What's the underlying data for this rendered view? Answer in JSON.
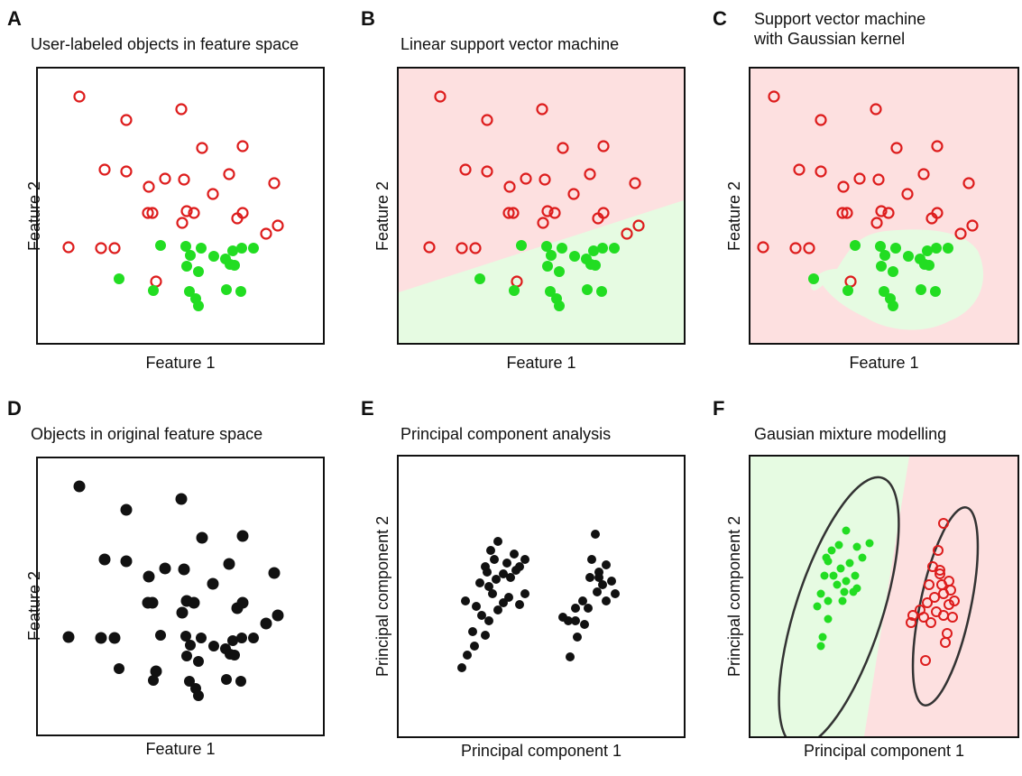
{
  "colors": {
    "red": "#dd1c1c",
    "green": "#22dd22",
    "black": "#111111",
    "bg_red": "#fde0e0",
    "bg_green": "#e6fbe2"
  },
  "panels": [
    {
      "letter": "A",
      "title": "User-labeled objects in feature space",
      "xlabel": "Feature 1",
      "ylabel": "Feature 2"
    },
    {
      "letter": "B",
      "title": "Linear support vector machine",
      "xlabel": "Feature 1",
      "ylabel": "Feature 2"
    },
    {
      "letter": "C",
      "title": "Support vector machine\nwith Gaussian kernel",
      "xlabel": "Feature 1",
      "ylabel": "Feature 2"
    },
    {
      "letter": "D",
      "title": "Objects in original feature space",
      "xlabel": "Feature 1",
      "ylabel": "Feature 2"
    },
    {
      "letter": "E",
      "title": "Principal component analysis",
      "xlabel": "Principal component 1",
      "ylabel": "Principal component 2"
    },
    {
      "letter": "F",
      "title": "Gausian mixture modelling",
      "xlabel": "Principal component 1",
      "ylabel": "Principal component 2"
    }
  ]
}
